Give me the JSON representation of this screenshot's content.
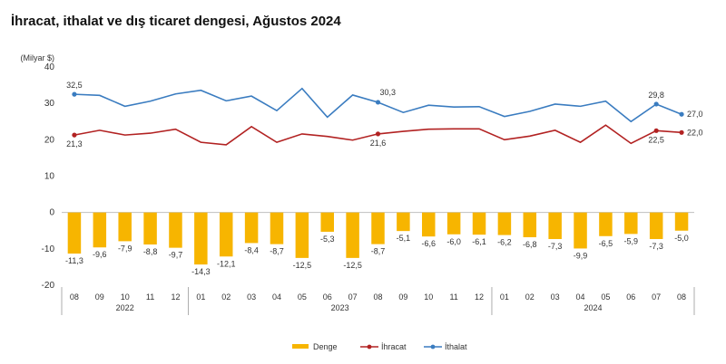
{
  "title": "İhracat, ithalat ve dış ticaret dengesi, Ağustos 2024",
  "chart_data": {
    "type": "bar+line",
    "unit_label": "(Milyar $)",
    "ylim": [
      -20,
      40
    ],
    "yticks": [
      -20,
      -10,
      0,
      10,
      20,
      30,
      40
    ],
    "months": [
      "08",
      "09",
      "10",
      "11",
      "12",
      "01",
      "02",
      "03",
      "04",
      "05",
      "06",
      "07",
      "08",
      "09",
      "10",
      "11",
      "12",
      "01",
      "02",
      "03",
      "04",
      "05",
      "06",
      "07",
      "08"
    ],
    "years": [
      {
        "label": "2022",
        "from": 0,
        "to": 4
      },
      {
        "label": "2023",
        "from": 5,
        "to": 16
      },
      {
        "label": "2024",
        "from": 17,
        "to": 24
      }
    ],
    "series": [
      {
        "name": "Denge",
        "kind": "bar",
        "color": "#F7B500",
        "values": [
          -11.3,
          -9.6,
          -7.9,
          -8.8,
          -9.7,
          -14.3,
          -12.1,
          -8.4,
          -8.7,
          -12.5,
          -5.3,
          -12.5,
          -8.7,
          -5.1,
          -6.6,
          -6.0,
          -6.1,
          -6.2,
          -6.8,
          -7.3,
          -9.9,
          -6.5,
          -5.9,
          -7.3,
          -5.0
        ],
        "labels": [
          "-11,3",
          "-9,6",
          "-7,9",
          "-8,8",
          "-9,7",
          "-14,3",
          "-12,1",
          "-8,4",
          "-8,7",
          "-12,5",
          "-5,3",
          "-12,5",
          "-8,7",
          "-5,1",
          "-6,6",
          "-6,0",
          "-6,1",
          "-6,2",
          "-6,8",
          "-7,3",
          "-9,9",
          "-6,5",
          "-5,9",
          "-7,3",
          "-5,0"
        ]
      },
      {
        "name": "İhracat",
        "kind": "line",
        "color": "#B22222",
        "values": [
          21.3,
          22.6,
          21.3,
          21.8,
          22.9,
          19.3,
          18.6,
          23.6,
          19.3,
          21.6,
          20.9,
          19.9,
          21.6,
          22.3,
          22.9,
          23.0,
          23.0,
          20.0,
          21.0,
          22.6,
          19.3,
          24.0,
          19.0,
          22.5,
          22.0
        ],
        "annotations": [
          {
            "index": 0,
            "text": "21,3",
            "pos": "below"
          },
          {
            "index": 12,
            "text": "21,6",
            "pos": "below"
          },
          {
            "index": 23,
            "text": "22,5",
            "pos": "below"
          },
          {
            "index": 24,
            "text": "22,0",
            "pos": "right"
          }
        ]
      },
      {
        "name": "İthalat",
        "kind": "line",
        "color": "#3A7CC0",
        "values": [
          32.5,
          32.2,
          29.2,
          30.6,
          32.6,
          33.6,
          30.7,
          32.0,
          28.0,
          34.1,
          26.2,
          32.3,
          30.3,
          27.5,
          29.5,
          29.0,
          29.1,
          26.4,
          27.8,
          29.8,
          29.2,
          30.6,
          25.0,
          29.8,
          27.0
        ],
        "annotations": [
          {
            "index": 0,
            "text": "32,5",
            "pos": "above"
          },
          {
            "index": 12,
            "text": "30,3",
            "pos": "above-right"
          },
          {
            "index": 23,
            "text": "29,8",
            "pos": "above"
          },
          {
            "index": 24,
            "text": "27,0",
            "pos": "right"
          }
        ]
      }
    ],
    "legend": [
      "Denge",
      "İhracat",
      "İthalat"
    ],
    "legend_position": "bottom"
  }
}
